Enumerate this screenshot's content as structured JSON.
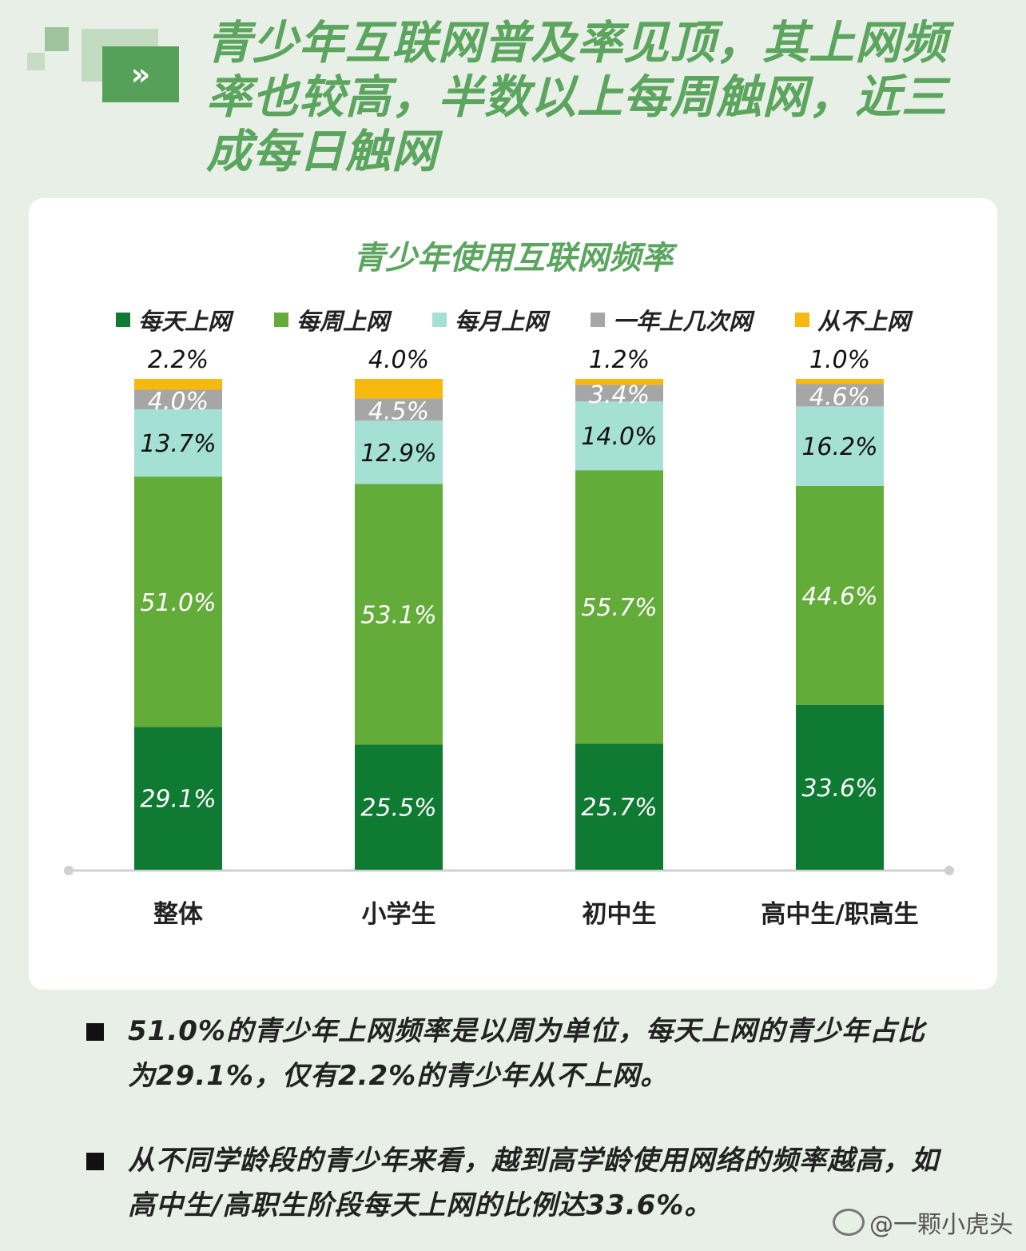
{
  "header": {
    "icon": "double-chevron-right-icon",
    "chevron_glyph": "»",
    "headline": "青少年互联网普及率见顶，其上网频率也较高，半数以上每周触网，近三成每日触网"
  },
  "colors": {
    "daily": "#0e7a32",
    "weekly": "#64ac3a",
    "monthly": "#a4e0d3",
    "yearly": "#a6a6a6",
    "never": "#f7b90e",
    "title": "#5ba55f"
  },
  "chart_data": {
    "type": "bar",
    "stacked": true,
    "title": "青少年使用互联网频率",
    "legend_position": "top",
    "ylim": [
      0,
      100
    ],
    "categories": [
      "整体",
      "小学生",
      "初中生",
      "高中生/职高生"
    ],
    "series": [
      {
        "name": "每天上网",
        "values": [
          29.1,
          25.5,
          25.7,
          33.6
        ],
        "labels": [
          "29.1%",
          "25.5%",
          "25.7%",
          "33.6%"
        ]
      },
      {
        "name": "每周上网",
        "values": [
          51.0,
          53.1,
          55.7,
          44.6
        ],
        "labels": [
          "51.0%",
          "53.1%",
          "55.7%",
          "44.6%"
        ]
      },
      {
        "name": "每月上网",
        "values": [
          13.7,
          12.9,
          14.0,
          16.2
        ],
        "labels": [
          "13.7%",
          "12.9%",
          "14.0%",
          "16.2%"
        ]
      },
      {
        "name": "一年上几次网",
        "values": [
          4.0,
          4.5,
          3.4,
          4.6
        ],
        "labels": [
          "4.0%",
          "4.5%",
          "3.4%",
          "4.6%"
        ]
      },
      {
        "name": "从不上网",
        "values": [
          2.2,
          4.0,
          1.2,
          1.0
        ],
        "labels": [
          "2.2%",
          "4.0%",
          "1.2%",
          "1.0%"
        ]
      }
    ]
  },
  "bullets": [
    "51.0%的青少年上网频率是以周为单位，每天上网的青少年占比为29.1%，仅有2.2%的青少年从不上网。",
    "从不同学龄段的青少年来看，越到高学龄使用网络的频率越高，如高中生/高职生阶段每天上网的比例达33.6%。"
  ],
  "watermark": {
    "icon": "weibo-logo-icon",
    "text": "@一颗小虎头"
  }
}
